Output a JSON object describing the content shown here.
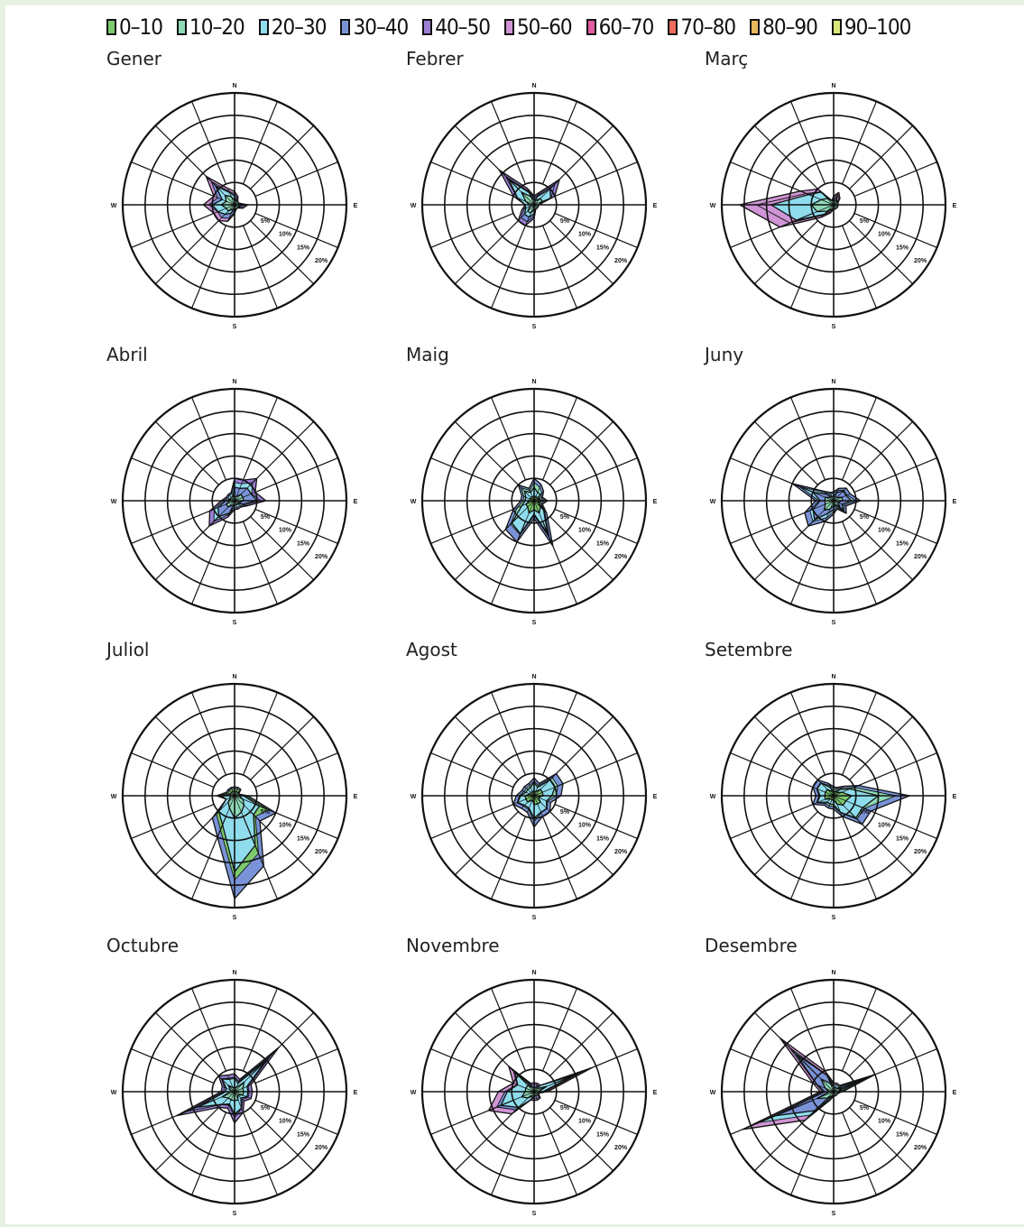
{
  "legend": {
    "items": [
      {
        "label": "0–10",
        "color": "#7dcb6f"
      },
      {
        "label": "10–20",
        "color": "#8fd9b6"
      },
      {
        "label": "20–30",
        "color": "#8fdcec"
      },
      {
        "label": "30–40",
        "color": "#7a93d8"
      },
      {
        "label": "40–50",
        "color": "#9b80d4"
      },
      {
        "label": "50–60",
        "color": "#cf95d6"
      },
      {
        "label": "60–70",
        "color": "#e45aa3"
      },
      {
        "label": "70–80",
        "color": "#ee6a5e"
      },
      {
        "label": "80–90",
        "color": "#e7b95c"
      },
      {
        "label": "90–100",
        "color": "#d8e67a"
      }
    ]
  },
  "chart_data": {
    "type": "radar",
    "axis_labels": {
      "north": "N",
      "east": "E",
      "south": "S",
      "west": "W"
    },
    "ring_labels": [
      "5%",
      "10%",
      "15%",
      "20%"
    ],
    "directions": 16,
    "charts": [
      {
        "month": "Gener",
        "series": [
          [
            3,
            2,
            1,
            1,
            3,
            2,
            1,
            1,
            2,
            4,
            5,
            5,
            7,
            5,
            9,
            4
          ],
          [
            2,
            1,
            1,
            1,
            2,
            1,
            1,
            1,
            1,
            2,
            3,
            4,
            5,
            3,
            6,
            3
          ],
          [
            1,
            1,
            1,
            1,
            1,
            1,
            1,
            1,
            1,
            1,
            2,
            2,
            3,
            2,
            3,
            2
          ]
        ],
        "colors": [
          "#7a93d8",
          "#8fdcec",
          "#8fd9b6"
        ],
        "outer": "#cf95d6"
      },
      {
        "month": "Febrer",
        "series": [
          [
            2,
            3,
            8,
            5,
            1,
            1,
            1,
            1,
            3,
            5,
            5,
            3,
            2,
            5,
            11,
            4
          ],
          [
            1,
            2,
            5,
            4,
            1,
            1,
            1,
            1,
            2,
            3,
            3,
            2,
            2,
            4,
            8,
            3
          ],
          [
            1,
            1,
            2,
            2,
            1,
            1,
            1,
            1,
            1,
            2,
            2,
            1,
            1,
            2,
            4,
            2
          ]
        ],
        "colors": [
          "#7a93d8",
          "#8fdcec",
          "#8fd9b6"
        ],
        "outer": "#9b80d4"
      },
      {
        "month": "Març",
        "series": [
          [
            2,
            3,
            2,
            1,
            1,
            1,
            1,
            1,
            1,
            2,
            4,
            13,
            21,
            8,
            5,
            1
          ],
          [
            1,
            2,
            1,
            1,
            1,
            1,
            1,
            1,
            1,
            1,
            3,
            9,
            14,
            6,
            4,
            1
          ],
          [
            1,
            1,
            1,
            1,
            1,
            1,
            1,
            1,
            1,
            1,
            2,
            4,
            5,
            3,
            2,
            1
          ]
        ],
        "colors": [
          "#cf95d6",
          "#8fdcec",
          "#8fd9b6"
        ],
        "outer": "#cf95d6"
      },
      {
        "month": "Abril",
        "series": [
          [
            5,
            5,
            7,
            5,
            7,
            3,
            2,
            2,
            2,
            4,
            8,
            6,
            3,
            2,
            2,
            2
          ],
          [
            3,
            3,
            4,
            4,
            5,
            2,
            1,
            1,
            1,
            3,
            5,
            4,
            2,
            1,
            1,
            1
          ],
          [
            1,
            1,
            2,
            2,
            2,
            1,
            1,
            1,
            1,
            1,
            2,
            2,
            1,
            1,
            1,
            1
          ]
        ],
        "colors": [
          "#8fdcec",
          "#7a93d8",
          "#8fd9b6"
        ],
        "outer": "#9b80d4"
      },
      {
        "month": "Maig",
        "series": [
          [
            5,
            4,
            3,
            2,
            3,
            2,
            4,
            11,
            4,
            10,
            9,
            5,
            3,
            3,
            5,
            3
          ],
          [
            3,
            2,
            2,
            1,
            2,
            1,
            3,
            8,
            3,
            8,
            7,
            3,
            2,
            2,
            3,
            2
          ],
          [
            1,
            1,
            1,
            1,
            1,
            1,
            2,
            3,
            2,
            3,
            2,
            2,
            1,
            1,
            1,
            1
          ]
        ],
        "colors": [
          "#8fd9b6",
          "#8fdcec",
          "#7dcb6f"
        ],
        "outer": "#7a93d8"
      },
      {
        "month": "Juny",
        "series": [
          [
            2,
            3,
            4,
            4,
            6,
            3,
            4,
            2,
            3,
            5,
            8,
            7,
            4,
            10,
            3,
            2
          ],
          [
            1,
            2,
            3,
            3,
            4,
            2,
            3,
            1,
            2,
            3,
            6,
            5,
            3,
            5,
            2,
            1
          ],
          [
            1,
            1,
            1,
            2,
            2,
            1,
            2,
            1,
            1,
            2,
            3,
            2,
            2,
            2,
            1,
            1
          ]
        ],
        "colors": [
          "#8fdcec",
          "#7a93d8",
          "#8fd9b6"
        ],
        "outer": "#7a93d8"
      },
      {
        "month": "Juliol",
        "series": [
          [
            2,
            2,
            2,
            1,
            3,
            10,
            8,
            17,
            23,
            10,
            7,
            2,
            4,
            2,
            2,
            2
          ],
          [
            1,
            1,
            1,
            1,
            2,
            6,
            6,
            12,
            17,
            7,
            5,
            2,
            3,
            1,
            1,
            1
          ],
          [
            1,
            1,
            1,
            1,
            1,
            2,
            3,
            4,
            5,
            3,
            2,
            1,
            1,
            1,
            1,
            1
          ]
        ],
        "colors": [
          "#7dcb6f",
          "#8fdcec",
          "#8fd9b6"
        ],
        "outer": "#7a93d8"
      },
      {
        "month": "Agost",
        "series": [
          [
            4,
            3,
            7,
            7,
            6,
            4,
            5,
            5,
            7,
            4,
            4,
            5,
            4,
            3,
            3,
            3
          ],
          [
            3,
            2,
            5,
            5,
            4,
            3,
            4,
            4,
            5,
            3,
            3,
            4,
            3,
            2,
            2,
            2
          ],
          [
            1,
            1,
            2,
            2,
            2,
            1,
            2,
            2,
            2,
            1,
            2,
            2,
            2,
            1,
            1,
            1
          ]
        ],
        "colors": [
          "#8fd9b6",
          "#8fdcec",
          "#7dcb6f"
        ],
        "outer": "#7a93d8"
      },
      {
        "month": "Setembre",
        "series": [
          [
            2,
            2,
            3,
            6,
            17,
            9,
            9,
            5,
            3,
            3,
            3,
            5,
            4,
            5,
            5,
            3
          ],
          [
            1,
            1,
            2,
            4,
            10,
            7,
            7,
            4,
            2,
            2,
            2,
            4,
            3,
            4,
            4,
            2
          ],
          [
            1,
            1,
            1,
            2,
            4,
            3,
            3,
            2,
            1,
            1,
            1,
            2,
            2,
            2,
            2,
            1
          ]
        ],
        "colors": [
          "#8fd9b6",
          "#8fdcec",
          "#7dcb6f"
        ],
        "outer": "#7a93d8"
      },
      {
        "month": "Octubre",
        "series": [
          [
            4,
            3,
            14,
            4,
            4,
            4,
            3,
            5,
            7,
            4,
            5,
            14,
            3,
            3,
            5,
            4
          ],
          [
            3,
            2,
            10,
            3,
            3,
            3,
            2,
            4,
            5,
            3,
            4,
            9,
            2,
            2,
            4,
            3
          ],
          [
            1,
            1,
            3,
            2,
            2,
            2,
            1,
            2,
            2,
            2,
            2,
            3,
            1,
            1,
            2,
            1
          ]
        ],
        "colors": [
          "#7a93d8",
          "#8fdcec",
          "#8fd9b6"
        ],
        "outer": "#9b80d4"
      },
      {
        "month": "Novembre",
        "series": [
          [
            2,
            2,
            2,
            14,
            3,
            1,
            2,
            2,
            2,
            2,
            7,
            11,
            8,
            5,
            8,
            2
          ],
          [
            1,
            1,
            2,
            10,
            2,
            1,
            1,
            1,
            1,
            2,
            5,
            8,
            6,
            4,
            6,
            1
          ],
          [
            1,
            1,
            1,
            3,
            1,
            1,
            1,
            1,
            1,
            1,
            2,
            3,
            2,
            2,
            2,
            1
          ]
        ],
        "colors": [
          "#7a93d8",
          "#8fdcec",
          "#8fd9b6"
        ],
        "outer": "#cf95d6"
      },
      {
        "month": "Desembre",
        "series": [
          [
            2,
            2,
            2,
            10,
            2,
            1,
            1,
            1,
            1,
            2,
            9,
            22,
            3,
            5,
            17,
            5
          ],
          [
            1,
            1,
            1,
            6,
            1,
            1,
            1,
            1,
            1,
            1,
            6,
            14,
            2,
            4,
            12,
            4
          ],
          [
            1,
            1,
            1,
            2,
            1,
            1,
            1,
            1,
            1,
            1,
            2,
            4,
            1,
            2,
            4,
            2
          ]
        ],
        "colors": [
          "#8fdcec",
          "#7a93d8",
          "#8fd9b6"
        ],
        "outer": "#cf95d6"
      }
    ],
    "rlim": [
      0,
      25
    ]
  }
}
